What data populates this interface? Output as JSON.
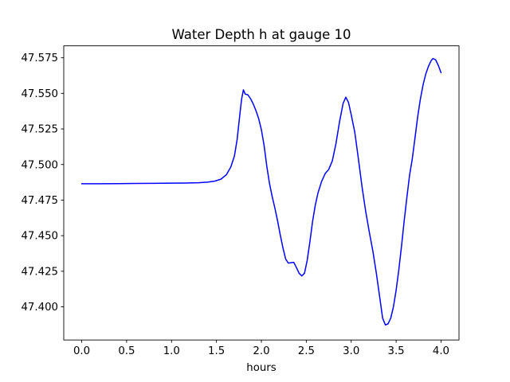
{
  "figure": {
    "background_color": "#ffffff",
    "frame_color": "#000000"
  },
  "chart_data": {
    "type": "line",
    "title": "Water Depth h at gauge 10",
    "xlabel": "hours",
    "ylabel": "",
    "grid": false,
    "legend_position": "none",
    "line_color": "#0000ff",
    "line_width": 1.5,
    "xlim": [
      -0.2,
      4.2
    ],
    "ylim": [
      47.3767,
      47.5834
    ],
    "x_ticks": [
      0.0,
      0.5,
      1.0,
      1.5,
      2.0,
      2.5,
      3.0,
      3.5,
      4.0
    ],
    "x_tick_labels": [
      "0.0",
      "0.5",
      "1.0",
      "1.5",
      "2.0",
      "2.5",
      "3.0",
      "3.5",
      "4.0"
    ],
    "y_ticks": [
      47.4,
      47.425,
      47.45,
      47.475,
      47.5,
      47.525,
      47.55,
      47.575
    ],
    "y_tick_labels": [
      "47.400",
      "47.425",
      "47.450",
      "47.475",
      "47.500",
      "47.525",
      "47.550",
      "47.575"
    ],
    "series": [
      {
        "color": "#0000ff",
        "x": [
          0.0,
          0.2,
          0.4,
          0.6,
          0.8,
          1.0,
          1.15,
          1.3,
          1.4,
          1.48,
          1.55,
          1.61,
          1.66,
          1.7,
          1.73,
          1.76,
          1.78,
          1.8,
          1.82,
          1.85,
          1.88,
          1.91,
          1.94,
          1.97,
          2.0,
          2.03,
          2.06,
          2.09,
          2.12,
          2.15,
          2.18,
          2.21,
          2.24,
          2.27,
          2.3,
          2.33,
          2.36,
          2.39,
          2.42,
          2.45,
          2.48,
          2.51,
          2.54,
          2.57,
          2.6,
          2.63,
          2.67,
          2.71,
          2.75,
          2.79,
          2.83,
          2.87,
          2.91,
          2.94,
          2.97,
          3.0,
          3.04,
          3.08,
          3.12,
          3.16,
          3.2,
          3.24,
          3.28,
          3.32,
          3.35,
          3.38,
          3.41,
          3.44,
          3.47,
          3.5,
          3.53,
          3.56,
          3.59,
          3.62,
          3.65,
          3.68,
          3.71,
          3.74,
          3.77,
          3.8,
          3.83,
          3.86,
          3.89,
          3.91,
          3.94,
          3.97,
          4.0
        ],
        "y": [
          47.4865,
          47.4865,
          47.4866,
          47.4867,
          47.4868,
          47.4869,
          47.487,
          47.4872,
          47.4876,
          47.4883,
          47.4897,
          47.4928,
          47.4983,
          47.506,
          47.5175,
          47.535,
          47.546,
          47.5525,
          47.5495,
          47.549,
          47.5462,
          47.5425,
          47.5378,
          47.5322,
          47.5245,
          47.5135,
          47.499,
          47.4868,
          47.4775,
          47.4695,
          47.4606,
          47.4506,
          47.4415,
          47.4336,
          47.4307,
          47.431,
          47.4313,
          47.4276,
          47.4236,
          47.4217,
          47.4236,
          47.4326,
          47.4456,
          47.46,
          47.4714,
          47.48,
          47.488,
          47.4936,
          47.4966,
          47.5026,
          47.5146,
          47.53,
          47.543,
          47.5473,
          47.5436,
          47.535,
          47.5226,
          47.504,
          47.4846,
          47.4676,
          47.453,
          47.4396,
          47.4236,
          47.4056,
          47.392,
          47.3873,
          47.388,
          47.392,
          47.4,
          47.4116,
          47.426,
          47.4426,
          47.4606,
          47.477,
          47.4926,
          47.504,
          47.5186,
          47.5336,
          47.546,
          47.556,
          47.5636,
          47.569,
          47.573,
          47.5745,
          47.5736,
          47.5696,
          47.5645
        ]
      }
    ]
  }
}
